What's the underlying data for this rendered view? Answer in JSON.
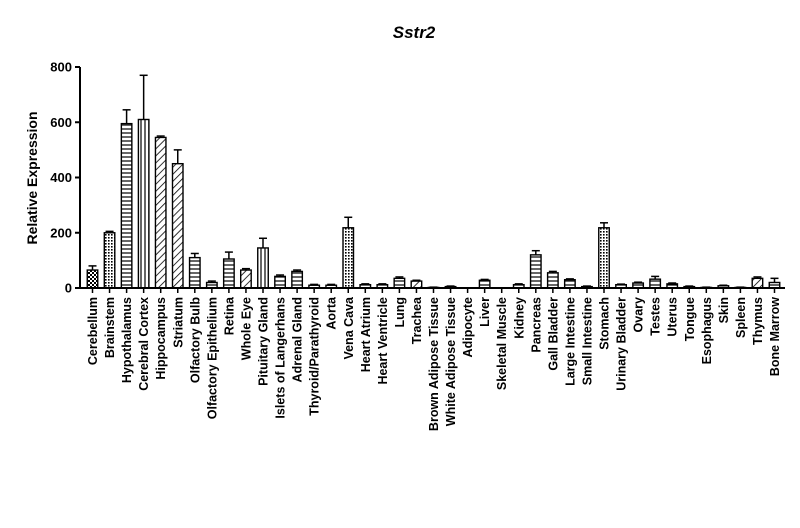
{
  "chart_data": {
    "type": "bar",
    "title": "Sstr2",
    "xlabel": "",
    "ylabel": "Relative Expression",
    "ylim": [
      0,
      800
    ],
    "yticks": [
      "0",
      "200",
      "400",
      "600",
      "800"
    ],
    "grid": false,
    "legend": "none",
    "categories": [
      "Cerebellum",
      "Brainstem",
      "Hypothalamus",
      "Cerebral Cortex",
      "Hippocampus",
      "Striatum",
      "Olfactory Bulb",
      "Olfactory Epithelium",
      "Retina",
      "Whole Eye",
      "Pituitary Gland",
      "Islets of Langerhans",
      "Adrenal Gland",
      "Thyroid/Parathyroid",
      "Aorta",
      "Vena Cava",
      "Heart Atrium",
      "Heart Ventricle",
      "Lung",
      "Trachea",
      "Brown Adipose Tissue",
      "White Adipose Tissue",
      "Adipocyte",
      "Liver",
      "Skeletal Muscle",
      "Kidney",
      "Pancreas",
      "Gall Bladder",
      "Large Intestine",
      "Small Intestine",
      "Stomach",
      "Urinary Bladder",
      "Ovary",
      "Testes",
      "Uterus",
      "Tongue",
      "Esophagus",
      "Skin",
      "Spleen",
      "Thymus",
      "Bone Marrow"
    ],
    "values": [
      65,
      200,
      595,
      610,
      545,
      450,
      110,
      20,
      105,
      65,
      145,
      42,
      60,
      10,
      10,
      218,
      12,
      12,
      35,
      25,
      2,
      5,
      0,
      28,
      0,
      12,
      120,
      55,
      30,
      5,
      218,
      12,
      18,
      32,
      15,
      5,
      2,
      8,
      2,
      35,
      20
    ],
    "errors": [
      15,
      5,
      50,
      160,
      5,
      50,
      15,
      5,
      25,
      5,
      35,
      5,
      5,
      3,
      3,
      38,
      3,
      3,
      5,
      3,
      1,
      2,
      0,
      3,
      0,
      3,
      15,
      5,
      3,
      2,
      18,
      2,
      3,
      10,
      3,
      2,
      1,
      2,
      1,
      5,
      15
    ],
    "patterns": [
      "check",
      "dots",
      "hlines",
      "vlines",
      "diag",
      "diag",
      "hlines",
      "hlines",
      "hlines",
      "diag",
      "vlines",
      "hlines",
      "hlines",
      "hlines",
      "hlines",
      "dots",
      "hlines",
      "hlines",
      "hlines",
      "diag",
      "hlines",
      "hlines",
      "hlines",
      "hlines",
      "hlines",
      "hlines",
      "hlines",
      "hlines",
      "hlines",
      "hlines",
      "dots",
      "hlines",
      "hlines",
      "hlines",
      "hlines",
      "hlines",
      "hlines",
      "hlines",
      "hlines",
      "diag",
      "hlines"
    ],
    "colors": {
      "bar_stroke": "#000000",
      "background": "#ffffff"
    }
  }
}
